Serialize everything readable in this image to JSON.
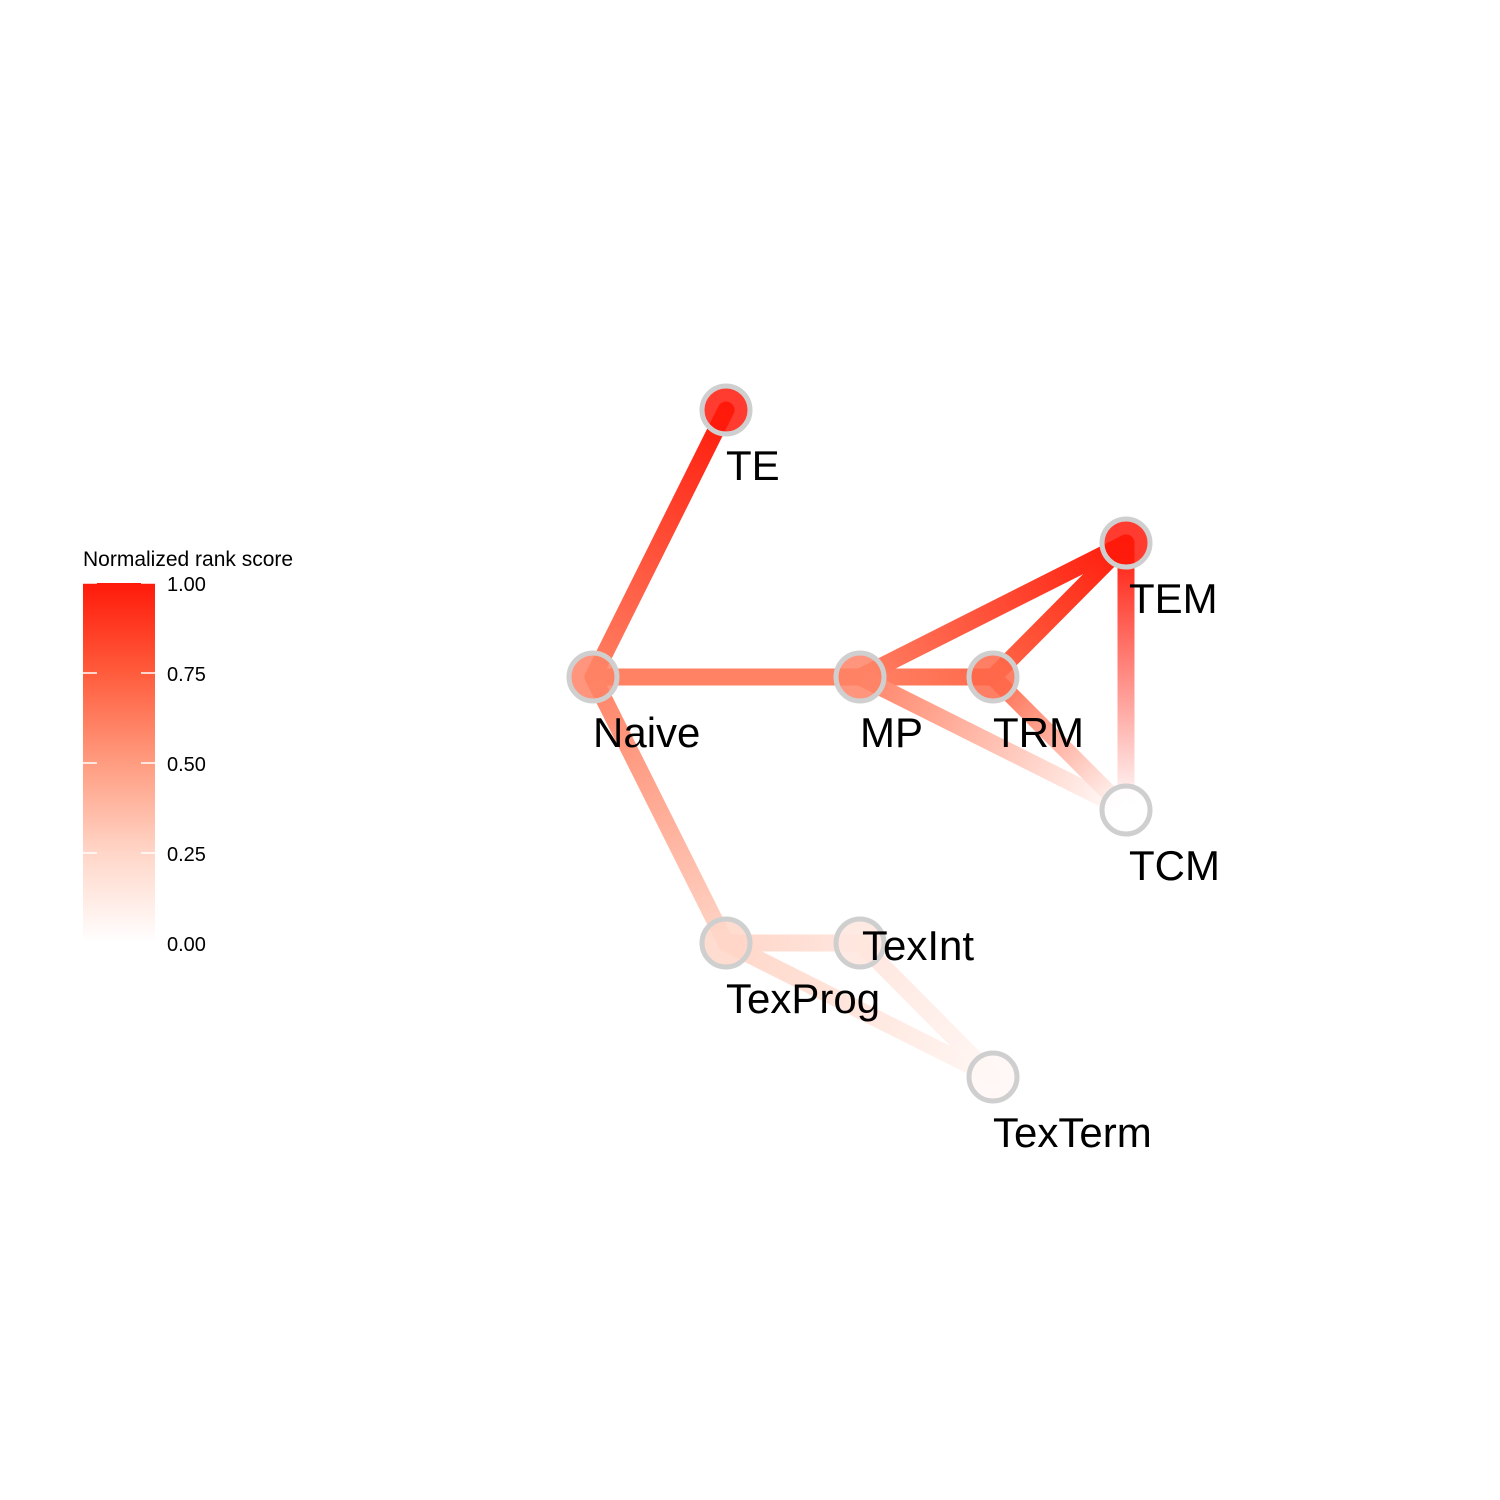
{
  "legend": {
    "title": "Normalized rank score",
    "ticks": [
      "1.00",
      "0.75",
      "0.50",
      "0.25",
      "0.00"
    ],
    "tick_values": [
      1.0,
      0.75,
      0.5,
      0.25,
      0.0
    ],
    "color_low": "#ffffff",
    "color_high": "#ff1a0a"
  },
  "nodes": [
    {
      "id": "TE",
      "label": "TE",
      "score": 1.0
    },
    {
      "id": "Naive",
      "label": "Naive",
      "score": 0.6
    },
    {
      "id": "MP",
      "label": "MP",
      "score": 0.6
    },
    {
      "id": "TRM",
      "label": "TRM",
      "score": 0.7
    },
    {
      "id": "TEM",
      "label": "TEM",
      "score": 1.0
    },
    {
      "id": "TCM",
      "label": "TCM",
      "score": 0.0
    },
    {
      "id": "TexProg",
      "label": "TexProg",
      "score": 0.25
    },
    {
      "id": "TexInt",
      "label": "TexInt",
      "score": 0.15
    },
    {
      "id": "TexTerm",
      "label": "TexTerm",
      "score": 0.05
    }
  ],
  "edges": [
    {
      "from": "Naive",
      "to": "TE"
    },
    {
      "from": "Naive",
      "to": "MP"
    },
    {
      "from": "MP",
      "to": "TRM"
    },
    {
      "from": "MP",
      "to": "TEM"
    },
    {
      "from": "TRM",
      "to": "TEM"
    },
    {
      "from": "TEM",
      "to": "TCM"
    },
    {
      "from": "MP",
      "to": "TCM"
    },
    {
      "from": "TRM",
      "to": "TCM"
    },
    {
      "from": "Naive",
      "to": "TexProg"
    },
    {
      "from": "TexProg",
      "to": "TexInt"
    },
    {
      "from": "TexProg",
      "to": "TexTerm"
    },
    {
      "from": "TexInt",
      "to": "TexTerm"
    }
  ]
}
